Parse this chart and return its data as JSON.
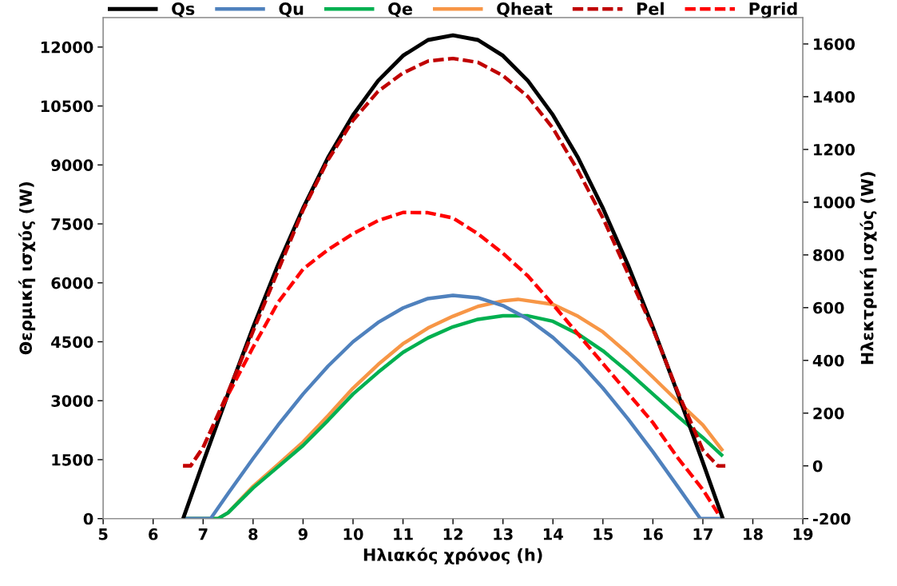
{
  "chart_data": {
    "type": "line",
    "xlabel": "Ηλιακός χρόνος (h)",
    "ylabel": "Θερμική ισχύς (W)",
    "y2label": "Ηλεκτρική ισχύς (W)",
    "xlim": [
      5,
      19
    ],
    "xticks": [
      5,
      6,
      7,
      8,
      9,
      10,
      11,
      12,
      13,
      14,
      15,
      16,
      17,
      18,
      19
    ],
    "ylim": [
      0,
      12750
    ],
    "yticks": [
      0,
      1500,
      3000,
      4500,
      6000,
      7500,
      9000,
      10500,
      12000
    ],
    "y2lim": [
      -200,
      1700
    ],
    "y2ticks": [
      -200,
      0,
      200,
      400,
      600,
      800,
      1000,
      1200,
      1400,
      1600
    ],
    "grid": false,
    "legend": "top",
    "marker": "none",
    "series": [
      {
        "name": "Qs",
        "color": "#000000",
        "line_style": "solid",
        "x": [
          6.6,
          7,
          7.5,
          8,
          8.5,
          9,
          9.5,
          10,
          10.5,
          11,
          11.5,
          12,
          12.5,
          13,
          13.5,
          14,
          14.5,
          15,
          15.5,
          16,
          16.5,
          17,
          17.4
        ],
        "values": [
          0,
          1430,
          3180,
          4870,
          6460,
          7900,
          9190,
          10270,
          11140,
          11780,
          12180,
          12300,
          12180,
          11780,
          11140,
          10270,
          9190,
          7900,
          6460,
          4870,
          3180,
          1430,
          0
        ]
      },
      {
        "name": "Qu",
        "color": "#4f81bd",
        "line_style": "solid",
        "x": [
          6.6,
          7.15,
          7.5,
          8,
          8.5,
          9,
          9.5,
          10,
          10.5,
          11,
          11.5,
          12,
          12.5,
          13,
          13.5,
          14,
          14.5,
          15,
          15.5,
          16,
          16.5,
          16.95,
          17.4
        ],
        "values": [
          0,
          0,
          640,
          1530,
          2380,
          3170,
          3880,
          4500,
          4990,
          5360,
          5600,
          5680,
          5620,
          5420,
          5080,
          4610,
          4020,
          3320,
          2540,
          1700,
          810,
          0,
          0
        ]
      },
      {
        "name": "Qe",
        "color": "#00b050",
        "line_style": "solid",
        "x": [
          6.6,
          7.3,
          7.5,
          8,
          8.5,
          9,
          9.5,
          10,
          10.5,
          11,
          11.5,
          12,
          12.5,
          13,
          13.5,
          14,
          14.5,
          15,
          15.5,
          16,
          16.5,
          17,
          17.4
        ],
        "values": [
          0,
          0,
          150,
          780,
          1320,
          1860,
          2500,
          3170,
          3720,
          4230,
          4600,
          4880,
          5070,
          5160,
          5160,
          5020,
          4700,
          4270,
          3740,
          3170,
          2600,
          2060,
          1590
        ]
      },
      {
        "name": "Qheat",
        "color": "#f79646",
        "line_style": "solid",
        "x": [
          6.6,
          7.3,
          7.5,
          8,
          8.5,
          9,
          9.5,
          10,
          10.5,
          11,
          11.5,
          12,
          12.5,
          13,
          13.3,
          14,
          14.5,
          15,
          15.5,
          16,
          16.5,
          17,
          17.4
        ],
        "values": [
          0,
          0,
          150,
          820,
          1380,
          1950,
          2620,
          3320,
          3920,
          4450,
          4850,
          5150,
          5400,
          5540,
          5580,
          5450,
          5150,
          4750,
          4200,
          3600,
          2980,
          2380,
          1720
        ]
      },
      {
        "name": "Pel",
        "color": "#c00000",
        "line_style": "dashed",
        "axis": "y2",
        "x": [
          6.6,
          6.75,
          7,
          7.5,
          8,
          8.5,
          9,
          9.5,
          10,
          10.5,
          11,
          11.5,
          12,
          12.5,
          13,
          13.5,
          14,
          14.5,
          15,
          15.5,
          16,
          16.5,
          17,
          17.3,
          17.45
        ],
        "values": [
          0,
          0,
          70,
          280,
          510,
          740,
          970,
          1160,
          1310,
          1420,
          1490,
          1535,
          1545,
          1530,
          1480,
          1400,
          1280,
          1120,
          940,
          730,
          520,
          280,
          60,
          0,
          0
        ]
      },
      {
        "name": "Pgrid",
        "color": "#ff0000",
        "line_style": "dashed",
        "axis": "y2",
        "x": [
          6.6,
          6.75,
          7,
          7.5,
          8,
          8.5,
          9,
          9.5,
          10,
          10.5,
          11,
          11.5,
          12,
          12.5,
          13,
          13.5,
          14,
          14.5,
          15,
          15.5,
          16,
          16.5,
          17,
          17.3
        ],
        "values": [
          0,
          0,
          70,
          270,
          450,
          620,
          746,
          820,
          880,
          930,
          961,
          960,
          940,
          880,
          806,
          720,
          612,
          500,
          388,
          276,
          164,
          30,
          -90,
          -180
        ]
      }
    ]
  }
}
